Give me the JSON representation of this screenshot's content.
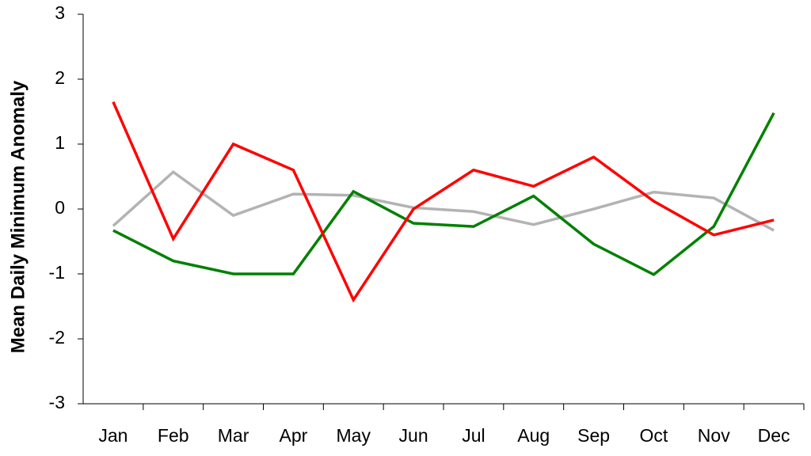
{
  "chart_data": {
    "type": "line",
    "y_label": "Mean Daily Minimum Anomaly",
    "categories": [
      "Jan",
      "Feb",
      "Mar",
      "Apr",
      "May",
      "Jun",
      "Jul",
      "Aug",
      "Sep",
      "Oct",
      "Nov",
      "Dec"
    ],
    "series": [
      {
        "color": "#b3b3b3",
        "values": [
          -0.26,
          0.57,
          -0.1,
          0.23,
          0.21,
          0.02,
          -0.04,
          -0.24,
          0,
          0.26,
          0.17,
          -0.33
        ]
      },
      {
        "color": "#008000",
        "values": [
          -0.33,
          -0.8,
          -1.0,
          -1.0,
          0.27,
          -0.22,
          -0.27,
          0.2,
          -0.54,
          -1.01,
          -0.27,
          1.48
        ]
      },
      {
        "color": "#ff0000",
        "values": [
          1.65,
          -0.46,
          1.0,
          0.6,
          -1.4,
          0,
          0.6,
          0.35,
          0.8,
          0.12,
          -0.4,
          -0.17
        ]
      }
    ],
    "ylim": [
      -3,
      3
    ],
    "yticks": [
      -3,
      -2,
      -1,
      0,
      1,
      2,
      3
    ],
    "grid": false
  }
}
